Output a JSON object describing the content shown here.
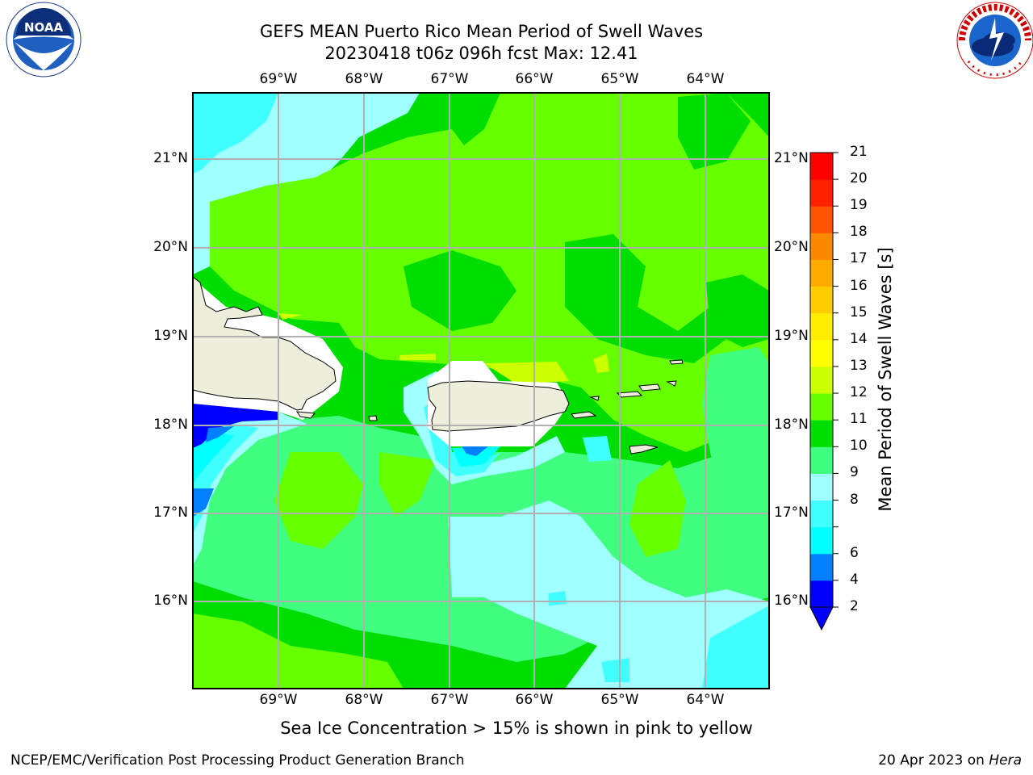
{
  "title": {
    "line1": "GEFS MEAN Puerto Rico Mean Period of Swell Waves",
    "line2": "20230418 t06z 096h fcst   Max: 12.41"
  },
  "longitude_labels": [
    "69°W",
    "68°W",
    "67°W",
    "66°W",
    "65°W",
    "64°W"
  ],
  "latitude_labels": [
    "21°N",
    "20°N",
    "19°N",
    "18°N",
    "17°N",
    "16°N"
  ],
  "colorbar": {
    "title": "Mean Period of Swell Waves [s]",
    "ticks": [
      "2",
      "4",
      "6",
      "7",
      "8",
      "9",
      "10",
      "11",
      "12",
      "13",
      "14",
      "15",
      "16",
      "17",
      "18",
      "19",
      "20",
      "21"
    ],
    "tick_labels_shown": [
      "2",
      "4",
      "6",
      "8",
      "9",
      "10",
      "11",
      "12",
      "13",
      "14",
      "15",
      "16",
      "17",
      "18",
      "19",
      "20",
      "21"
    ],
    "colors": [
      "#0000ff",
      "#0080ff",
      "#00ffff",
      "#40ffff",
      "#a0ffff",
      "#40ff80",
      "#00dd00",
      "#66ff00",
      "#ccff00",
      "#ffff00",
      "#ffee00",
      "#ffcc00",
      "#ffaa00",
      "#ff8800",
      "#ff5500",
      "#ff2200",
      "#ff0000"
    ],
    "under_color": "#0000ff"
  },
  "land_color": "#eeeedd",
  "note": "Sea Ice Concentration > 15% is shown in pink to yellow",
  "footer": {
    "left": "NCEP/EMC/Verification Post Processing Product Generation Branch",
    "right_date": "20 Apr 2023 on ",
    "right_machine": "Hera"
  },
  "logos": {
    "left": "NOAA",
    "right": "NATIONAL WEATHER SERVICE"
  }
}
